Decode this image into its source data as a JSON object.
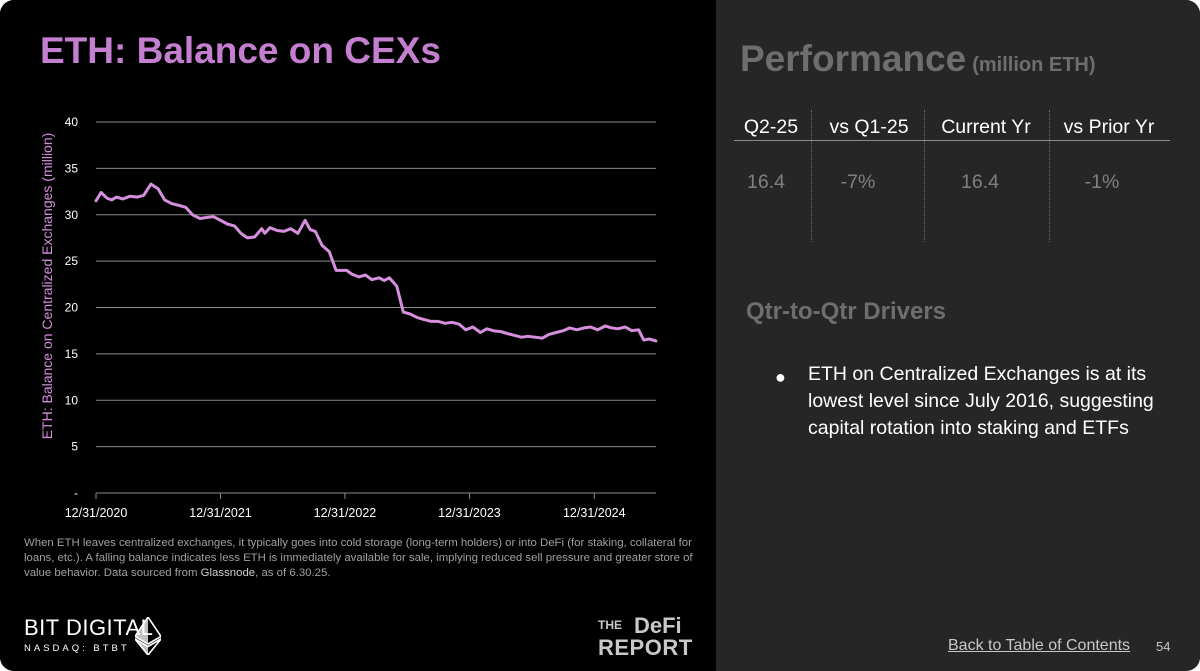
{
  "slide": {
    "title": "ETH: Balance on CEXs",
    "footnote": "When ETH leaves centralized exchanges, it typically goes into cold storage (long-term holders) or into DeFi (for staking, collateral for loans, etc.). A falling balance indicates less ETH is immediately available for sale, implying reduced sell pressure and greater store of value behavior. Data sourced from",
    "footnote_source": "Glassnode",
    "footnote_suffix": ", as of 6.30.25.",
    "page_number": "54",
    "back_link": "Back to Table of Contents"
  },
  "logos": {
    "bit_digital_name": "BIT DIGITAL",
    "bit_digital_ticker": "NASDAQ: BTBT",
    "defi_the": "THE",
    "defi_word": "DeFi",
    "defi_report": "REPORT"
  },
  "performance": {
    "title": "Performance",
    "units": "(million ETH)",
    "headers": [
      "Q2-25",
      "vs Q1-25",
      "Current Yr",
      "vs Prior Yr"
    ],
    "values": [
      "16.4",
      "-7%",
      "16.4",
      "-1%"
    ]
  },
  "drivers": {
    "title": "Qtr-to-Qtr Drivers",
    "bullets": [
      "ETH on Centralized Exchanges is at its lowest level since July 2016, suggesting capital rotation into staking and ETFs"
    ]
  },
  "chart_data": {
    "type": "line",
    "title": "ETH: Balance on CEXs",
    "ylabel": "ETH: Balance on Centralized Exchanges (million)",
    "xlabel": "",
    "ylim": [
      0,
      40
    ],
    "y_ticks": [
      "-",
      "5",
      "10",
      "15",
      "20",
      "25",
      "30",
      "35",
      "40"
    ],
    "x_range": [
      "2020-12-31",
      "2025-06-30"
    ],
    "x_ticks": [
      "12/31/2020",
      "12/31/2021",
      "12/31/2022",
      "12/31/2023",
      "12/31/2024"
    ],
    "grid": true,
    "line_color": "#d58fdc",
    "series": [
      {
        "x": [
          "2020-12-31",
          "2021-01-15",
          "2021-02-01",
          "2021-02-15",
          "2021-03-01",
          "2021-03-20",
          "2021-04-10",
          "2021-05-01",
          "2021-05-20",
          "2021-06-10",
          "2021-07-01",
          "2021-07-20",
          "2021-08-10",
          "2021-09-01",
          "2021-09-20",
          "2021-10-10",
          "2021-11-01",
          "2021-11-20",
          "2021-12-10",
          "2021-12-31",
          "2022-01-20",
          "2022-02-10",
          "2022-03-01",
          "2022-03-20",
          "2022-04-10",
          "2022-05-01",
          "2022-05-10",
          "2022-05-25",
          "2022-06-15",
          "2022-07-05",
          "2022-07-25",
          "2022-08-15",
          "2022-09-05",
          "2022-09-20",
          "2022-10-05",
          "2022-10-25",
          "2022-11-15",
          "2022-12-05",
          "2022-12-20",
          "2023-01-05",
          "2023-01-20",
          "2023-02-10",
          "2023-03-01",
          "2023-03-20",
          "2023-04-10",
          "2023-04-25",
          "2023-05-10",
          "2023-06-01",
          "2023-06-20",
          "2023-07-10",
          "2023-08-01",
          "2023-08-20",
          "2023-09-10",
          "2023-10-01",
          "2023-10-20",
          "2023-11-10",
          "2023-12-01",
          "2023-12-20",
          "2024-01-10",
          "2024-02-01",
          "2024-02-20",
          "2024-03-10",
          "2024-04-01",
          "2024-04-20",
          "2024-05-10",
          "2024-06-01",
          "2024-06-20",
          "2024-07-10",
          "2024-08-01",
          "2024-08-20",
          "2024-09-10",
          "2024-10-01",
          "2024-10-20",
          "2024-11-10",
          "2024-12-01",
          "2024-12-20",
          "2025-01-10",
          "2025-02-01",
          "2025-02-20",
          "2025-03-10",
          "2025-04-01",
          "2025-04-20",
          "2025-05-10",
          "2025-05-25",
          "2025-06-10",
          "2025-06-30"
        ],
        "y": [
          31.5,
          32.4,
          31.8,
          31.6,
          31.9,
          31.7,
          32.0,
          31.9,
          32.1,
          33.3,
          32.8,
          31.6,
          31.2,
          31.0,
          30.8,
          30.0,
          29.6,
          29.7,
          29.8,
          29.4,
          29.0,
          28.8,
          28.0,
          27.5,
          27.6,
          28.5,
          28.0,
          28.6,
          28.3,
          28.2,
          28.5,
          28.0,
          29.4,
          28.4,
          28.2,
          26.7,
          26.0,
          24.0,
          24.0,
          24.0,
          23.6,
          23.3,
          23.5,
          23.0,
          23.2,
          22.9,
          23.2,
          22.3,
          19.5,
          19.3,
          18.9,
          18.7,
          18.5,
          18.5,
          18.3,
          18.4,
          18.2,
          17.6,
          17.9,
          17.3,
          17.7,
          17.5,
          17.4,
          17.2,
          17.0,
          16.8,
          16.9,
          16.8,
          16.7,
          17.1,
          17.3,
          17.5,
          17.8,
          17.6,
          17.8,
          17.9,
          17.6,
          18.0,
          17.8,
          17.7,
          17.9,
          17.5,
          17.6,
          16.5,
          16.6,
          16.4
        ]
      }
    ]
  }
}
